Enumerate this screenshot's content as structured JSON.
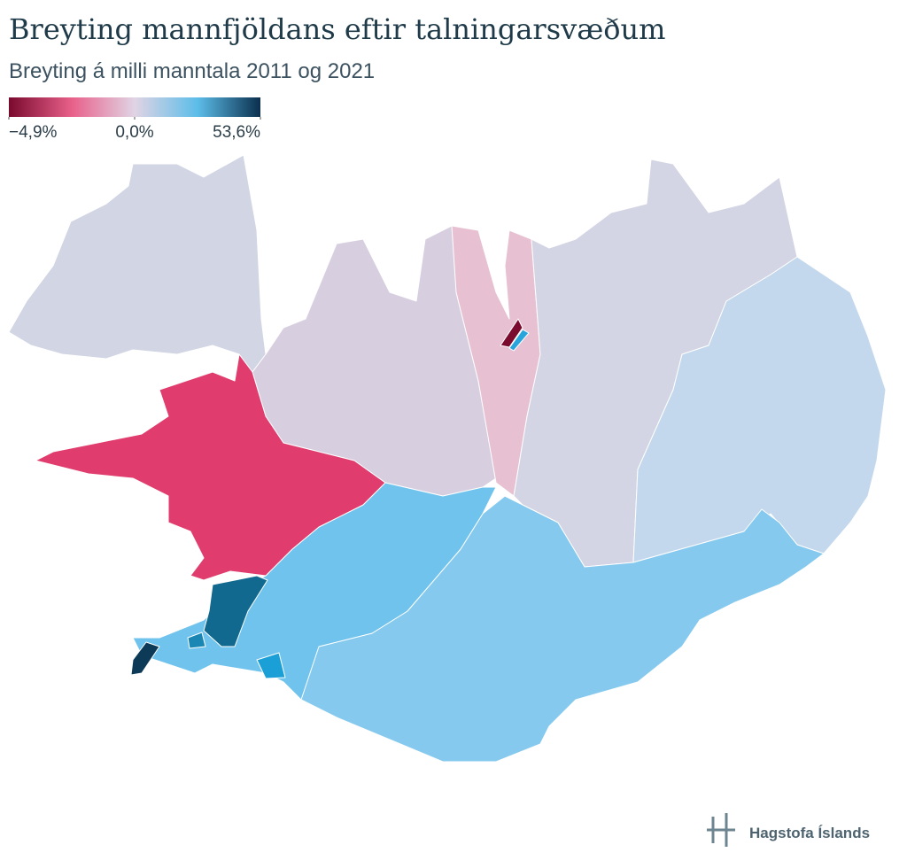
{
  "header": {
    "title": "Breyting mannfjöldans eftir talningarsvæðum",
    "subtitle": "Breyting á milli manntala 2011 og 2021"
  },
  "legend": {
    "ticks": [
      {
        "value": -4.9,
        "label": "−4,9%"
      },
      {
        "value": 0,
        "label": "0,0%"
      },
      {
        "value": 53.6,
        "label": "53,6%"
      }
    ]
  },
  "footer": {
    "logo": "Hagstofa Íslands"
  }
}
